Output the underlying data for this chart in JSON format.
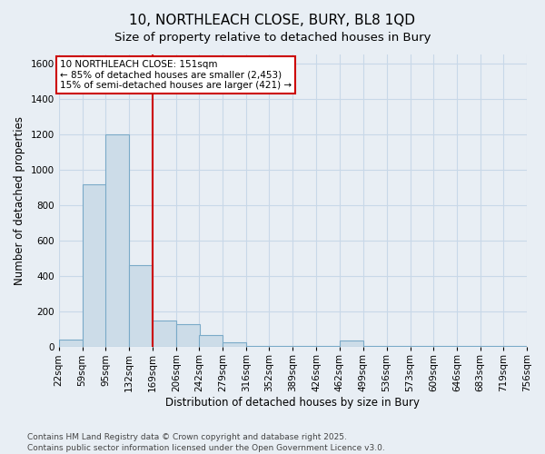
{
  "title_line1": "10, NORTHLEACH CLOSE, BURY, BL8 1QD",
  "title_line2": "Size of property relative to detached houses in Bury",
  "xlabel": "Distribution of detached houses by size in Bury",
  "ylabel": "Number of detached properties",
  "bins": [
    22,
    59,
    95,
    132,
    169,
    206,
    242,
    279,
    316,
    352,
    389,
    426,
    462,
    499,
    536,
    573,
    609,
    646,
    683,
    719,
    756
  ],
  "bin_labels": [
    "22sqm",
    "59sqm",
    "95sqm",
    "132sqm",
    "169sqm",
    "206sqm",
    "242sqm",
    "279sqm",
    "316sqm",
    "352sqm",
    "389sqm",
    "426sqm",
    "462sqm",
    "499sqm",
    "536sqm",
    "573sqm",
    "609sqm",
    "646sqm",
    "683sqm",
    "719sqm",
    "756sqm"
  ],
  "values": [
    45,
    920,
    1200,
    465,
    150,
    130,
    70,
    25,
    5,
    5,
    5,
    5,
    40,
    5,
    5,
    5,
    5,
    5,
    5,
    5
  ],
  "bar_color": "#ccdce8",
  "bar_edge_color": "#7aaac8",
  "grid_color": "#c8d8e8",
  "background_color": "#e8eef4",
  "property_line_x": 169,
  "property_line_color": "#cc0000",
  "annotation_text": "10 NORTHLEACH CLOSE: 151sqm\n← 85% of detached houses are smaller (2,453)\n15% of semi-detached houses are larger (421) →",
  "annotation_box_color": "#ffffff",
  "annotation_box_edge": "#cc0000",
  "ylim": [
    0,
    1650
  ],
  "yticks": [
    0,
    200,
    400,
    600,
    800,
    1000,
    1200,
    1400,
    1600
  ],
  "footnote": "Contains HM Land Registry data © Crown copyright and database right 2025.\nContains public sector information licensed under the Open Government Licence v3.0.",
  "title_fontsize": 11,
  "subtitle_fontsize": 9.5,
  "axis_label_fontsize": 8.5,
  "tick_fontsize": 7.5,
  "annotation_fontsize": 7.5,
  "footnote_fontsize": 6.5
}
